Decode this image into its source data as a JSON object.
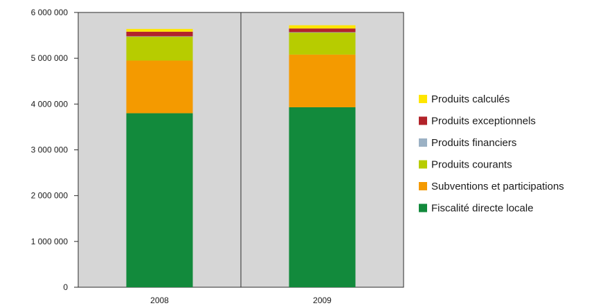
{
  "chart_data": {
    "type": "bar",
    "stacked": true,
    "categories": [
      "2008",
      "2009"
    ],
    "series": [
      {
        "name": "Fiscalité directe locale",
        "color": "#128a3c",
        "values": [
          3800000,
          3930000
        ]
      },
      {
        "name": "Subventions et participations",
        "color": "#f49a00",
        "values": [
          1150000,
          1150000
        ]
      },
      {
        "name": "Produits courants",
        "color": "#b7cc00",
        "values": [
          520000,
          480000
        ]
      },
      {
        "name": "Produits financiers",
        "color": "#9bb1c4",
        "values": [
          10000,
          10000
        ]
      },
      {
        "name": "Produits exceptionnels",
        "color": "#b2232a",
        "values": [
          100000,
          80000
        ]
      },
      {
        "name": "Produits calculés",
        "color": "#ffe600",
        "values": [
          60000,
          70000
        ]
      }
    ],
    "yticks": [
      "0",
      "1 000 000",
      "2 000 000",
      "3 000 000",
      "4 000 000",
      "5 000 000",
      "6 000 000"
    ],
    "ylim": [
      0,
      6000000
    ],
    "legend_position": "right",
    "legend_order": [
      "Produits calculés",
      "Produits exceptionnels",
      "Produits financiers",
      "Produits courants",
      "Subventions et participations",
      "Fiscalité directe locale"
    ],
    "plot_background": "#d6d6d6",
    "grid": false
  }
}
